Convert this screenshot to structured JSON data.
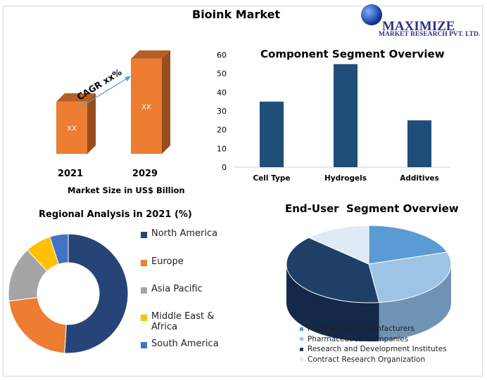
{
  "title": "Bioink Market",
  "logo": {
    "name": "MAXIMIZE",
    "sub": "MARKET RESEARCH PVT. LTD."
  },
  "chart_data": [
    {
      "type": "bar",
      "title": "Market Size",
      "categories": [
        "2021",
        "2029"
      ],
      "data_labels": [
        "XX",
        "XX"
      ],
      "annotation": "CAGR xx%",
      "xlabel": "Market Size in US$ Billion",
      "relative_heights": [
        0.45,
        0.82
      ],
      "color": "#ED7D31"
    },
    {
      "type": "bar",
      "title": "Component Segment Overview",
      "categories": [
        "Cell Type",
        "Hydrogels",
        "Additives"
      ],
      "values": [
        35,
        55,
        25
      ],
      "ylim": [
        0,
        60
      ],
      "yticks": [
        0,
        10,
        20,
        30,
        40,
        50,
        60
      ],
      "color": "#1F4E79",
      "grid": false
    },
    {
      "type": "pie",
      "title": "Regional Analysis in 2021 (%)",
      "donut": true,
      "labels": [
        "North America",
        "Europe",
        "Asia Pacific",
        "Middle East & Africa",
        "South America"
      ],
      "label_lines": [
        [
          "North America"
        ],
        [
          "Europe"
        ],
        [
          "Asia Pacific"
        ],
        [
          "Middle East &",
          "Africa"
        ],
        [
          "South America"
        ]
      ],
      "values": [
        51,
        22,
        15,
        7,
        5
      ],
      "colors": [
        "#264478",
        "#ED7D31",
        "#A5A5A5",
        "#FFC000",
        "#4472C4"
      ],
      "legend": "right"
    },
    {
      "type": "pie",
      "title": "End-User  Segment Overview",
      "3d": true,
      "labels": [
        "Medical Device Manfacturers",
        "Pharmaceutical Companies",
        "Research and Development Institutes",
        "Contract Research Organization"
      ],
      "values": [
        20,
        28,
        39,
        13
      ],
      "colors": [
        "#5B9BD5",
        "#9DC3E6",
        "#1F3F66",
        "#DEEBF7"
      ],
      "legend": "bottom"
    }
  ]
}
